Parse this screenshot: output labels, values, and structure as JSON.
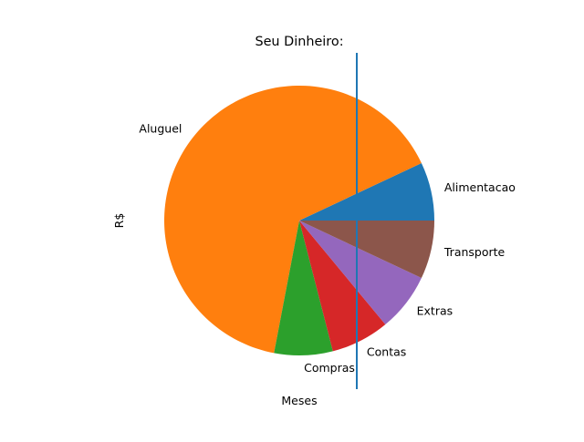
{
  "chart_data": {
    "type": "pie",
    "title": "Seu Dinheiro:",
    "xlabel": "Meses",
    "ylabel": "R$",
    "start_angle_deg": 0,
    "direction": "counterclockwise",
    "slices": [
      {
        "label": "Alimentacao",
        "value": 7,
        "color": "#1f77b4"
      },
      {
        "label": "Aluguel",
        "value": 65,
        "color": "#ff7f0e"
      },
      {
        "label": "Compras",
        "value": 7,
        "color": "#2ca02c"
      },
      {
        "label": "Contas",
        "value": 7,
        "color": "#d62728"
      },
      {
        "label": "Extras",
        "value": 7,
        "color": "#9467bd"
      },
      {
        "label": "Transporte",
        "value": 7,
        "color": "#8c564b"
      }
    ],
    "vertical_line": {
      "color": "#1f77b4"
    }
  }
}
